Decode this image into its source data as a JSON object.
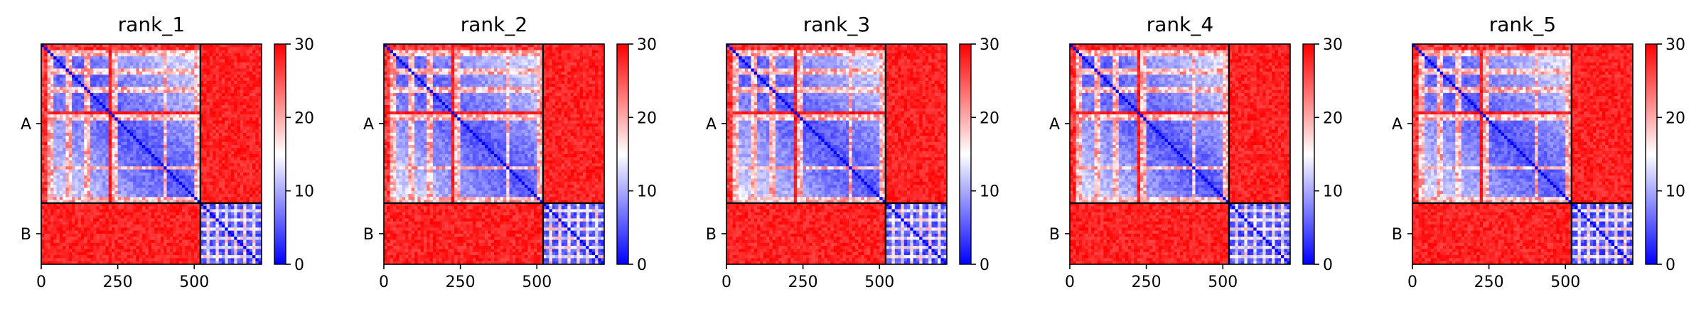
{
  "chart_data": [
    {
      "type": "heatmap",
      "title": "rank_1",
      "x_ticks": [
        0,
        250,
        500
      ],
      "x_range": [
        0,
        720
      ],
      "y_ticks": [
        "A",
        "B"
      ],
      "chains": [
        {
          "name": "A",
          "length": 520
        },
        {
          "name": "B",
          "length": 200
        }
      ],
      "colorbar": {
        "min": 0,
        "max": 30,
        "ticks": [
          0,
          10,
          20,
          30
        ],
        "colors": [
          "#0000ff",
          "#ffffff",
          "#ff0000"
        ]
      }
    },
    {
      "type": "heatmap",
      "title": "rank_2",
      "x_ticks": [
        0,
        250,
        500
      ],
      "x_range": [
        0,
        720
      ],
      "y_ticks": [
        "A",
        "B"
      ],
      "chains": [
        {
          "name": "A",
          "length": 520
        },
        {
          "name": "B",
          "length": 200
        }
      ],
      "colorbar": {
        "min": 0,
        "max": 30,
        "ticks": [
          0,
          10,
          20,
          30
        ],
        "colors": [
          "#0000ff",
          "#ffffff",
          "#ff0000"
        ]
      }
    },
    {
      "type": "heatmap",
      "title": "rank_3",
      "x_ticks": [
        0,
        250,
        500
      ],
      "x_range": [
        0,
        720
      ],
      "y_ticks": [
        "A",
        "B"
      ],
      "chains": [
        {
          "name": "A",
          "length": 520
        },
        {
          "name": "B",
          "length": 200
        }
      ],
      "colorbar": {
        "min": 0,
        "max": 30,
        "ticks": [
          0,
          10,
          20,
          30
        ],
        "colors": [
          "#0000ff",
          "#ffffff",
          "#ff0000"
        ]
      }
    },
    {
      "type": "heatmap",
      "title": "rank_4",
      "x_ticks": [
        0,
        250,
        500
      ],
      "x_range": [
        0,
        720
      ],
      "y_ticks": [
        "A",
        "B"
      ],
      "chains": [
        {
          "name": "A",
          "length": 520
        },
        {
          "name": "B",
          "length": 200
        }
      ],
      "colorbar": {
        "min": 0,
        "max": 30,
        "ticks": [
          0,
          10,
          20,
          30
        ],
        "colors": [
          "#0000ff",
          "#ffffff",
          "#ff0000"
        ]
      }
    },
    {
      "type": "heatmap",
      "title": "rank_5",
      "x_ticks": [
        0,
        250,
        500
      ],
      "x_range": [
        0,
        720
      ],
      "y_ticks": [
        "A",
        "B"
      ],
      "chains": [
        {
          "name": "A",
          "length": 520
        },
        {
          "name": "B",
          "length": 200
        }
      ],
      "colorbar": {
        "min": 0,
        "max": 30,
        "ticks": [
          0,
          10,
          20,
          30
        ],
        "colors": [
          "#0000ff",
          "#ffffff",
          "#ff0000"
        ]
      }
    }
  ]
}
